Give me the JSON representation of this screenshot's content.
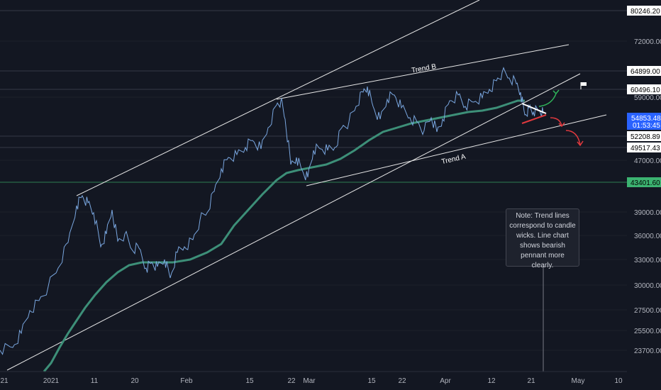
{
  "chart_data": {
    "type": "line",
    "title": "",
    "xlabel": "",
    "ylabel": "",
    "x_ticks": [
      "21",
      "2021",
      "11",
      "20",
      "Feb",
      "15",
      "22",
      "Mar",
      "15",
      "22",
      "Apr",
      "12",
      "21",
      "May",
      "10"
    ],
    "y_ticks": [
      "72000.00",
      "59000.00",
      "47000.00",
      "39000.00",
      "36000.00",
      "33000.00",
      "30000.00",
      "27500.00",
      "25500.00",
      "23700.00"
    ],
    "price_tags": [
      {
        "label": "80246.20",
        "style": "white"
      },
      {
        "label": "64899.00",
        "style": "white"
      },
      {
        "label": "60496.10",
        "style": "white"
      },
      {
        "label": "52208.89",
        "style": "white"
      },
      {
        "label": "49517.43",
        "style": "white"
      },
      {
        "label": "43401.60",
        "style": "green"
      }
    ],
    "current_price": {
      "label": "54853.48",
      "countdown": "01:53:45"
    },
    "series": [
      {
        "type": "price-line",
        "color": "#7aa7e0"
      },
      {
        "type": "moving-average",
        "color": "#3d8f78"
      }
    ],
    "annotations": {
      "trend_a": "Trend A",
      "trend_b": "Trend B",
      "note": "Note: Trend lines correspond to candle wicks. Line chart shows bearish pennant more clearly."
    }
  }
}
